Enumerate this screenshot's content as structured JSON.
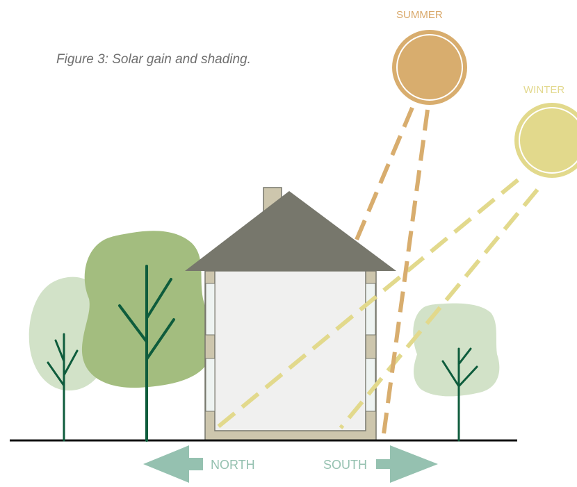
{
  "caption": "Figure 3: Solar gain and shading.",
  "labels": {
    "summer": "SUMMER",
    "winter": "WINTER",
    "north": "NORTH",
    "south": "SOUTH"
  },
  "colors": {
    "summer_sun": "#d8ad6e",
    "winter_sun": "#e2d98c",
    "label_summer": "#d9a86a",
    "label_winter": "#e3d98f",
    "roof": "#77776c",
    "wall": "#cdc6ad",
    "interior": "#f0f0ef",
    "window": "#eef3f1",
    "tree_dark": "#a3bd7f",
    "tree_light": "#d2e2c8",
    "trunk": "#0e5c3c",
    "arrow": "#95c1b0",
    "ground": "#111111"
  },
  "icons": [
    "summer-sun-icon",
    "winter-sun-icon",
    "north-arrow-icon",
    "south-arrow-icon"
  ]
}
